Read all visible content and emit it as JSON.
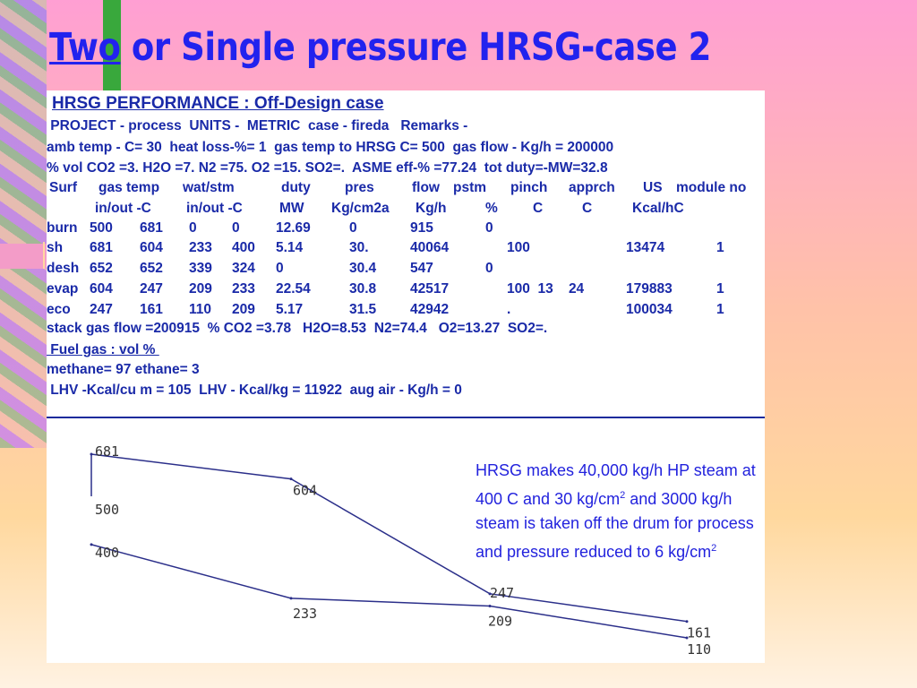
{
  "slide": {
    "title_part1": "Two",
    "title_part2": " or Single pressure HRSG-case 2",
    "title_color": "#2222ee"
  },
  "report": {
    "heading": "HRSG PERFORMANCE : Off-Design case",
    "lines": {
      "project": " PROJECT - process  UNITS -  METRIC  case - fireda   Remarks -",
      "ambient": "amb temp - C= 30  heat loss-%= 1  gas temp to HRSG C= 500  gas flow - Kg/h = 200000",
      "composition": "% vol CO2 =3. H2O =7. N2 =75. O2 =15. SO2=.  ASME eff-% =77.24  tot duty=-MW=32.8",
      "stack": "stack gas flow =200915  % CO2 =3.78   H2O=8.53  N2=74.4   O2=13.27  SO2=.",
      "fuel_label": " Fuel gas : vol % ",
      "fuel": "methane= 97 ethane= 3",
      "lhv": " LHV -Kcal/cu m = 105  LHV - Kcal/kg = 11922  aug air - Kg/h = 0"
    },
    "header1": [
      "Surf",
      "gas temp",
      "wat/stm",
      "duty",
      "pres",
      "flow",
      "pstm",
      "pinch",
      "apprch",
      "US",
      "module no"
    ],
    "header2": [
      "",
      "in/out -C",
      "in/out -C",
      "MW",
      "Kg/cm2a",
      "Kg/h",
      "%",
      "C",
      "C",
      "Kcal/hC",
      ""
    ],
    "rows": [
      [
        "burn",
        "500",
        "681",
        "0",
        "0",
        "12.69",
        "0",
        "915",
        "0",
        "",
        "",
        "",
        ""
      ],
      [
        "sh",
        "681",
        "604",
        "233",
        "400",
        "5.14",
        "30.",
        "40064",
        "",
        "100",
        "",
        "13474",
        "1"
      ],
      [
        "desh",
        "652",
        "652",
        "339",
        "324",
        "0",
        "30.4",
        "547",
        "0",
        "",
        "",
        "",
        ""
      ],
      [
        "evap",
        "604",
        "247",
        "209",
        "233",
        "22.54",
        "30.8",
        "42517",
        "",
        "100  13    24",
        "",
        "179883",
        "1"
      ],
      [
        "eco",
        "247",
        "161",
        "110",
        "209",
        "5.17",
        "31.5",
        "42942",
        "",
        ".",
        "",
        "100034",
        "1"
      ]
    ]
  },
  "chart_data": {
    "type": "line",
    "x": [
      0,
      1,
      2,
      3
    ],
    "series": [
      {
        "values": [
          681,
          604,
          247,
          161
        ],
        "labels": [
          "681",
          "604",
          "247",
          "161"
        ]
      },
      {
        "values": [
          400,
          233,
          209,
          110
        ],
        "labels": [
          "400",
          "233",
          "209",
          "110"
        ]
      }
    ],
    "start_marker": {
      "label": "500"
    },
    "title": "",
    "xlabel": "",
    "ylabel": ""
  },
  "annotation": {
    "line1": "HRSG makes 40,000 kg/h HP steam at",
    "line2a": "400 C and 30 kg/cm",
    "sup": "2",
    "line2b": " and 3000 kg/h",
    "line3": "steam is taken off the drum for process",
    "line4a": "and pressure reduced to 6 kg/cm",
    "color": "#2222dd"
  }
}
